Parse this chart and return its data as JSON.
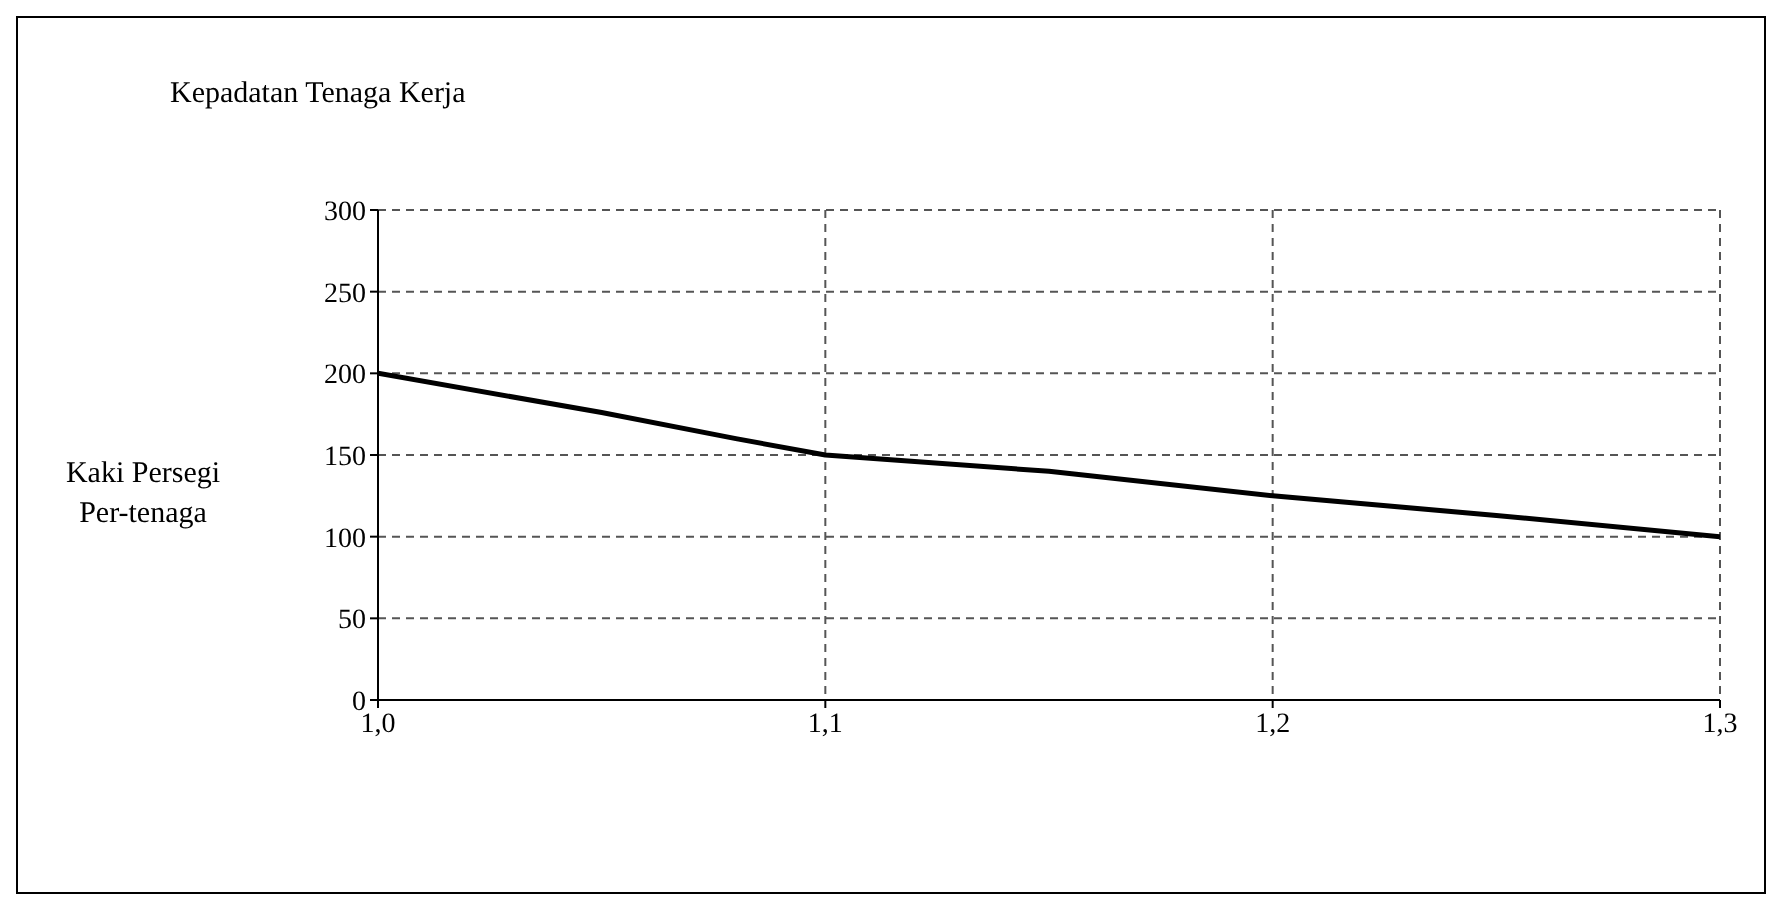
{
  "chart_data": {
    "type": "line",
    "title": "Kepadatan Tenaga Kerja",
    "ylabel": "Kaki Persegi Per-tenaga",
    "x": [
      1.0,
      1.05,
      1.08,
      1.1,
      1.15,
      1.2,
      1.25,
      1.3
    ],
    "series": [
      {
        "color": "#000000",
        "values": [
          200,
          176,
          160,
          150,
          140,
          125,
          113,
          100
        ]
      }
    ],
    "xlim": [
      1.0,
      1.3
    ],
    "xticks": [
      {
        "value": 1.0,
        "label": "1,0"
      },
      {
        "value": 1.1,
        "label": "1,1"
      },
      {
        "value": 1.2,
        "label": "1,2"
      },
      {
        "value": 1.3,
        "label": "1,3"
      }
    ],
    "ylim": [
      0,
      300
    ],
    "yticks": [
      0,
      50,
      100,
      150,
      200,
      250,
      300
    ],
    "grid": true,
    "marker": "none",
    "line_style": "solid",
    "legend": false
  }
}
